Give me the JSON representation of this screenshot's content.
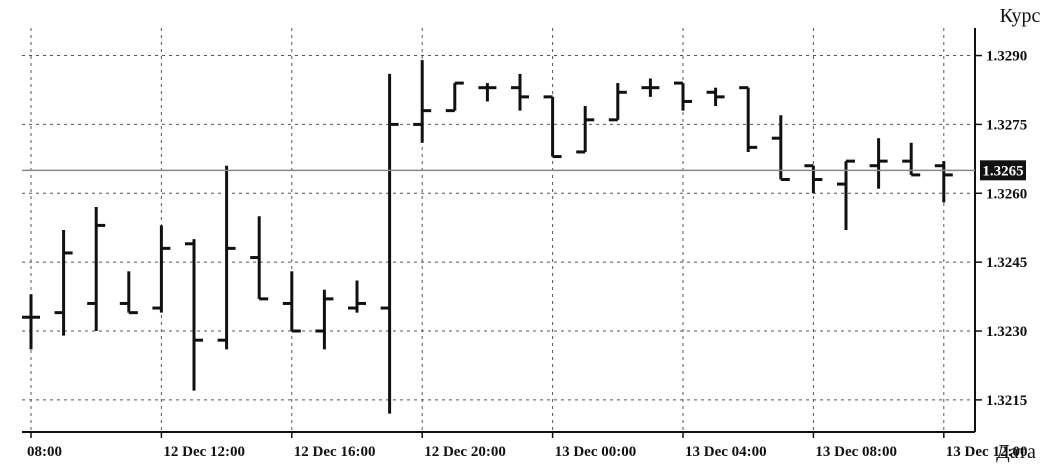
{
  "chart_data": {
    "type": "ohlc",
    "ylabel": "Курс",
    "xlabel": "Дата",
    "ylim": [
      1.3208,
      1.3296
    ],
    "y_ticks": [
      "1.3290",
      "1.3275",
      "1.3260",
      "1.3245",
      "1.3230",
      "1.3215"
    ],
    "y_tick_values": [
      1.329,
      1.3275,
      1.326,
      1.3245,
      1.323,
      1.3215
    ],
    "x_ticks": [
      "08:00",
      "12 Dec 12:00",
      "12 Dec 16:00",
      "12 Dec 20:00",
      "13 Dec 00:00",
      "13 Dec 04:00",
      "13 Dec 08:00",
      "13 Dec 12:00"
    ],
    "x_tick_index": [
      0,
      4,
      8,
      12,
      16,
      20,
      24,
      28
    ],
    "current_price": "1.3265",
    "current_price_value": 1.3265,
    "grid": true,
    "bars": [
      {
        "open": 1.3233,
        "high": 1.3238,
        "low": 1.3226,
        "close": 1.3233
      },
      {
        "open": 1.3234,
        "high": 1.3252,
        "low": 1.3229,
        "close": 1.3247
      },
      {
        "open": 1.3236,
        "high": 1.3257,
        "low": 1.323,
        "close": 1.3253
      },
      {
        "open": 1.3236,
        "high": 1.3243,
        "low": 1.3234,
        "close": 1.3234
      },
      {
        "open": 1.3235,
        "high": 1.3253,
        "low": 1.3234,
        "close": 1.3248
      },
      {
        "open": 1.3249,
        "high": 1.325,
        "low": 1.3217,
        "close": 1.3228
      },
      {
        "open": 1.3228,
        "high": 1.3266,
        "low": 1.3226,
        "close": 1.3248
      },
      {
        "open": 1.3246,
        "high": 1.3255,
        "low": 1.3237,
        "close": 1.3237
      },
      {
        "open": 1.3236,
        "high": 1.3243,
        "low": 1.323,
        "close": 1.323
      },
      {
        "open": 1.323,
        "high": 1.3239,
        "low": 1.3226,
        "close": 1.3237
      },
      {
        "open": 1.3235,
        "high": 1.3241,
        "low": 1.3234,
        "close": 1.3236
      },
      {
        "open": 1.3235,
        "high": 1.3286,
        "low": 1.3212,
        "close": 1.3275
      },
      {
        "open": 1.3275,
        "high": 1.3289,
        "low": 1.3271,
        "close": 1.3278
      },
      {
        "open": 1.3278,
        "high": 1.3284,
        "low": 1.3278,
        "close": 1.3284
      },
      {
        "open": 1.3283,
        "high": 1.3284,
        "low": 1.328,
        "close": 1.3283
      },
      {
        "open": 1.3283,
        "high": 1.3286,
        "low": 1.3278,
        "close": 1.3281
      },
      {
        "open": 1.3281,
        "high": 1.3281,
        "low": 1.3268,
        "close": 1.3268
      },
      {
        "open": 1.3269,
        "high": 1.3279,
        "low": 1.3269,
        "close": 1.3276
      },
      {
        "open": 1.3276,
        "high": 1.3284,
        "low": 1.3276,
        "close": 1.3282
      },
      {
        "open": 1.3283,
        "high": 1.3285,
        "low": 1.3281,
        "close": 1.3283
      },
      {
        "open": 1.3284,
        "high": 1.3284,
        "low": 1.3278,
        "close": 1.328
      },
      {
        "open": 1.3282,
        "high": 1.3283,
        "low": 1.3279,
        "close": 1.3281
      },
      {
        "open": 1.3283,
        "high": 1.3283,
        "low": 1.3269,
        "close": 1.327
      },
      {
        "open": 1.3272,
        "high": 1.3277,
        "low": 1.3263,
        "close": 1.3263
      },
      {
        "open": 1.3266,
        "high": 1.3266,
        "low": 1.326,
        "close": 1.3263
      },
      {
        "open": 1.3262,
        "high": 1.3267,
        "low": 1.3252,
        "close": 1.3267
      },
      {
        "open": 1.3266,
        "high": 1.3272,
        "low": 1.3261,
        "close": 1.3267
      },
      {
        "open": 1.3267,
        "high": 1.3271,
        "low": 1.3264,
        "close": 1.3264
      },
      {
        "open": 1.3266,
        "high": 1.3267,
        "low": 1.3258,
        "close": 1.3264
      }
    ]
  }
}
